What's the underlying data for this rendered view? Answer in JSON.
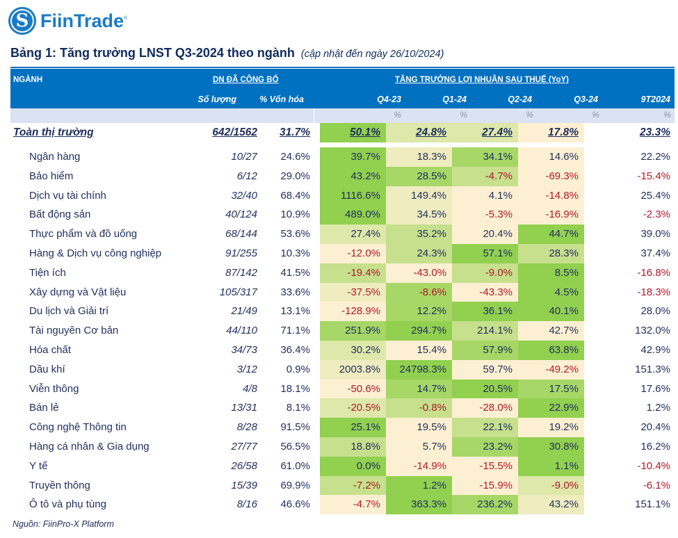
{
  "brand": {
    "name": "FiinTrade",
    "registered": "®",
    "logo_icon": "fiintrade-s-logo-icon",
    "accent": "#1a7bc4"
  },
  "title": {
    "main": "Bảng 1: Tăng trưởng LNST Q3-2024 theo ngành",
    "subtitle": "(cập nhật đến ngày 26/10/2024)"
  },
  "header": {
    "sector": "NGÀNH",
    "published_group": "DN ĐÃ CÔNG BỐ",
    "count": "Số lượng",
    "cap_pct": "% Vốn hóa",
    "growth_group": "TĂNG TRƯỞNG LỢI NHUẬN SAU THUẾ (YoY)",
    "periods": [
      "Q4-23",
      "Q1-24",
      "Q2-24",
      "Q3-24",
      "9T2024"
    ],
    "unit": "%"
  },
  "colors": {
    "header_bg": "#0070c0",
    "unit_bar_bg": "#dbe2f2",
    "heat_levels": {
      "lv4": "#92d050",
      "lv3": "#a7d767",
      "lv2": "#c6e08d",
      "lv1": "#dde8aa",
      "lv0": "#efecc0",
      "lvn": "#fdf0d2"
    },
    "negative_text": "#b0182a",
    "text": "#1f2d5c"
  },
  "total": {
    "name": "Toàn thị trường",
    "count": "642/1562",
    "cap": "31.7%",
    "growth": [
      "50.1%",
      "24.8%",
      "27.4%",
      "17.8%"
    ],
    "heat": [
      "lv4",
      "lv1",
      "lv1",
      "lvn"
    ],
    "ytd": "23.3%"
  },
  "rows": [
    {
      "name": "Ngân hàng",
      "count": "10/27",
      "cap": "24.6%",
      "growth": [
        "39.7%",
        "18.3%",
        "34.1%",
        "14.6%"
      ],
      "heat": [
        "lv4",
        "lv0",
        "lv3",
        "lvn"
      ],
      "ytd": "22.2%"
    },
    {
      "name": "Bảo hiểm",
      "count": "6/12",
      "cap": "29.0%",
      "growth": [
        "43.2%",
        "28.5%",
        "-4.7%",
        "-69.3%"
      ],
      "heat": [
        "lv4",
        "lv3",
        "lv2",
        "lvn"
      ],
      "ytd": "-15.4%"
    },
    {
      "name": "Dịch vụ tài chính",
      "count": "32/40",
      "cap": "68.4%",
      "growth": [
        "1116.6%",
        "149.4%",
        "4.1%",
        "-14.8%"
      ],
      "heat": [
        "lv4",
        "lv0",
        "lvn",
        "lvn"
      ],
      "ytd": "25.4%"
    },
    {
      "name": "Bất động sản",
      "count": "40/124",
      "cap": "10.9%",
      "growth": [
        "489.0%",
        "34.5%",
        "-5.3%",
        "-16.9%"
      ],
      "heat": [
        "lv4",
        "lv0",
        "lvn",
        "lvn"
      ],
      "ytd": "-2.3%"
    },
    {
      "name": "Thực phẩm và đồ uống",
      "count": "68/144",
      "cap": "53.6%",
      "growth": [
        "27.4%",
        "35.2%",
        "20.4%",
        "44.7%"
      ],
      "heat": [
        "lv1",
        "lv2",
        "lvn",
        "lv4"
      ],
      "ytd": "39.0%"
    },
    {
      "name": "Hàng & Dịch vụ công nghiệp",
      "count": "91/255",
      "cap": "10.3%",
      "growth": [
        "-12.0%",
        "24.3%",
        "57.1%",
        "28.3%"
      ],
      "heat": [
        "lvn",
        "lv2",
        "lv4",
        "lv2"
      ],
      "ytd": "37.4%"
    },
    {
      "name": "Tiện ích",
      "count": "87/142",
      "cap": "41.5%",
      "growth": [
        "-19.4%",
        "-43.0%",
        "-9.0%",
        "8.5%"
      ],
      "heat": [
        "lv2",
        "lvn",
        "lv2",
        "lv4"
      ],
      "ytd": "-16.8%"
    },
    {
      "name": "Xây dựng và Vật liệu",
      "count": "105/317",
      "cap": "33.6%",
      "growth": [
        "-37.5%",
        "-8.6%",
        "-43.3%",
        "4.5%"
      ],
      "heat": [
        "lv0",
        "lv3",
        "lvn",
        "lv4"
      ],
      "ytd": "-18.3%"
    },
    {
      "name": "Du lịch và Giải trí",
      "count": "21/49",
      "cap": "13.1%",
      "growth": [
        "-128.9%",
        "12.2%",
        "36.1%",
        "40.1%"
      ],
      "heat": [
        "lvn",
        "lv3",
        "lv4",
        "lv4"
      ],
      "ytd": "28.0%"
    },
    {
      "name": "Tài nguyên Cơ bản",
      "count": "44/110",
      "cap": "71.1%",
      "growth": [
        "251.9%",
        "294.7%",
        "214.1%",
        "42.7%"
      ],
      "heat": [
        "lv3",
        "lv4",
        "lv2",
        "lvn"
      ],
      "ytd": "132.0%"
    },
    {
      "name": "Hóa chất",
      "count": "34/73",
      "cap": "36.4%",
      "growth": [
        "30.2%",
        "15.4%",
        "57.9%",
        "63.8%"
      ],
      "heat": [
        "lv1",
        "lvn",
        "lv3",
        "lv4"
      ],
      "ytd": "42.9%"
    },
    {
      "name": "Dầu khí",
      "count": "3/12",
      "cap": "0.9%",
      "growth": [
        "2003.8%",
        "24798.3%",
        "59.7%",
        "-49.2%"
      ],
      "heat": [
        "lv0",
        "lv4",
        "lvn",
        "lvn"
      ],
      "ytd": "151.3%"
    },
    {
      "name": "Viễn thông",
      "count": "4/8",
      "cap": "18.1%",
      "growth": [
        "-50.6%",
        "14.7%",
        "20.5%",
        "17.5%"
      ],
      "heat": [
        "lvn",
        "lv3",
        "lv4",
        "lv3"
      ],
      "ytd": "17.6%"
    },
    {
      "name": "Bán lẻ",
      "count": "13/31",
      "cap": "8.1%",
      "growth": [
        "-20.5%",
        "-0.8%",
        "-28.0%",
        "22.9%"
      ],
      "heat": [
        "lv1",
        "lv2",
        "lvn",
        "lv4"
      ],
      "ytd": "1.2%"
    },
    {
      "name": "Công nghệ Thông tin",
      "count": "8/28",
      "cap": "91.5%",
      "growth": [
        "25.1%",
        "19.5%",
        "22.1%",
        "19.2%"
      ],
      "heat": [
        "lv4",
        "lvn",
        "lv2",
        "lvn"
      ],
      "ytd": "20.4%"
    },
    {
      "name": "Hàng cá nhân & Gia dụng",
      "count": "27/77",
      "cap": "56.5%",
      "growth": [
        "18.8%",
        "5.7%",
        "23.2%",
        "30.8%"
      ],
      "heat": [
        "lv2",
        "lvn",
        "lv3",
        "lv4"
      ],
      "ytd": "16.2%"
    },
    {
      "name": "Y tế",
      "count": "26/58",
      "cap": "61.0%",
      "growth": [
        "0.0%",
        "-14.9%",
        "-15.5%",
        "1.1%"
      ],
      "heat": [
        "lv4",
        "lvn",
        "lvn",
        "lv4"
      ],
      "ytd": "-10.4%"
    },
    {
      "name": "Truyền thông",
      "count": "15/39",
      "cap": "69.9%",
      "growth": [
        "-7.2%",
        "1.2%",
        "-15.9%",
        "-9.0%"
      ],
      "heat": [
        "lv2",
        "lv4",
        "lvn",
        "lv1"
      ],
      "ytd": "-6.1%"
    },
    {
      "name": "Ô tô và phụ tùng",
      "count": "8/16",
      "cap": "46.6%",
      "growth": [
        "-4.7%",
        "363.3%",
        "236.2%",
        "43.2%"
      ],
      "heat": [
        "lvn",
        "lv4",
        "lv3",
        "lv0"
      ],
      "ytd": "151.1%"
    }
  ],
  "source": "Nguồn: FiinPro-X Platform"
}
